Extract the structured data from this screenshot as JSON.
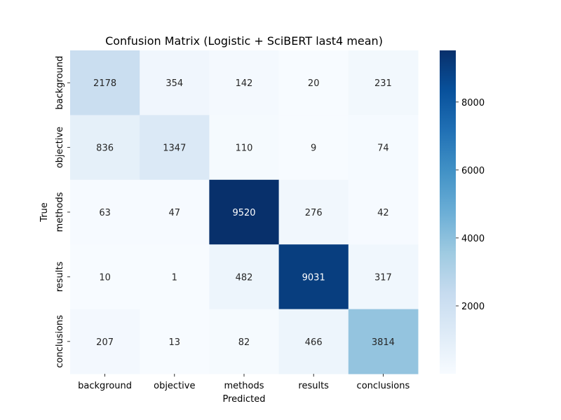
{
  "chart_data": {
    "type": "heatmap",
    "title": "Confusion Matrix (Logistic + SciBERT last4 mean)",
    "xlabel": "Predicted",
    "ylabel": "True",
    "x_categories": [
      "background",
      "objective",
      "methods",
      "results",
      "conclusions"
    ],
    "y_categories": [
      "background",
      "objective",
      "methods",
      "results",
      "conclusions"
    ],
    "values": [
      [
        2178,
        354,
        142,
        20,
        231
      ],
      [
        836,
        1347,
        110,
        9,
        74
      ],
      [
        63,
        47,
        9520,
        276,
        42
      ],
      [
        10,
        1,
        482,
        9031,
        317
      ],
      [
        207,
        13,
        82,
        466,
        3814
      ]
    ],
    "colorbar": {
      "colormap": "Blues",
      "vmin": 1,
      "vmax": 9520,
      "ticks": [
        2000,
        4000,
        6000,
        8000
      ],
      "tick_labels": [
        "2000",
        "4000",
        "6000",
        "8000"
      ]
    },
    "annotations": "cell counts",
    "grid": false
  }
}
